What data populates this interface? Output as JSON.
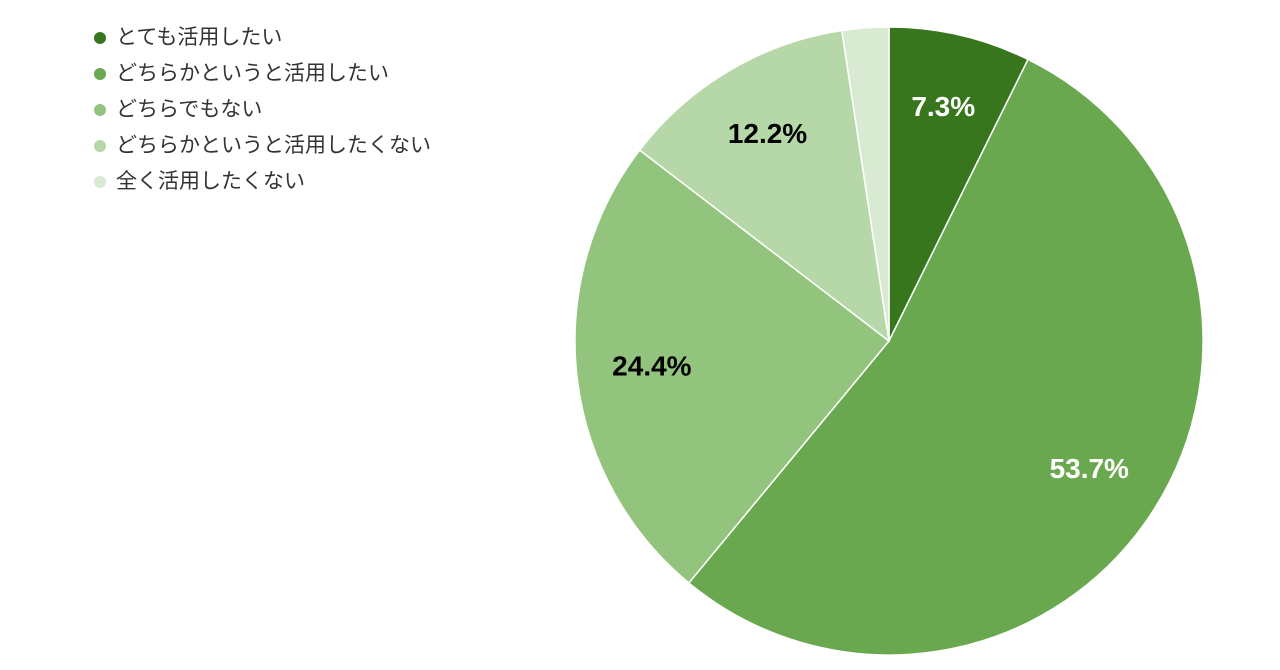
{
  "chart_data": {
    "type": "pie",
    "categories": [
      "とても活用したい",
      "どちらかというと活用したい",
      "どちらでもない",
      "どちらかというと活用したくない",
      "全く活用したくない"
    ],
    "values": [
      7.3,
      53.7,
      24.4,
      12.2,
      2.4
    ],
    "value_labels": [
      "7.3%",
      "53.7%",
      "24.4%",
      "12.2%",
      null
    ],
    "colors": [
      "#38761d",
      "#6aa84f",
      "#93c47d",
      "#b6d7a8",
      "#d9ead3"
    ],
    "legend": "top-left"
  }
}
